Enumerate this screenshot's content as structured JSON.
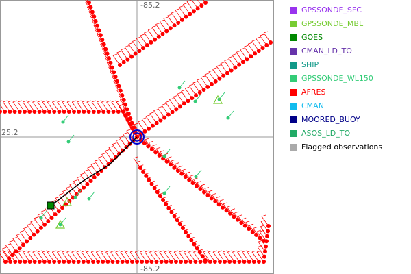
{
  "plot": {
    "labels": {
      "top": "-85.2",
      "left": "25.2",
      "bottom": "-85.2"
    }
  },
  "legend": {
    "items": [
      {
        "name": "GPSSONDE_SFC",
        "color": "#9933ee",
        "text_color": "#9933ee"
      },
      {
        "name": "GPSSONDE_MBL",
        "color": "#77cc33",
        "text_color": "#77cc33"
      },
      {
        "name": "GOES",
        "color": "#008800",
        "text_color": "#008800"
      },
      {
        "name": "CMAN_LD_TO",
        "color": "#6633aa",
        "text_color": "#6633aa"
      },
      {
        "name": "SHIP",
        "color": "#119988",
        "text_color": "#119988"
      },
      {
        "name": "GPSSONDE_WL150",
        "color": "#33cc77",
        "text_color": "#33cc77"
      },
      {
        "name": "AFRES",
        "color": "#ff0000",
        "text_color": "#ff0000"
      },
      {
        "name": "CMAN",
        "color": "#11bbee",
        "text_color": "#11bbee"
      },
      {
        "name": "MOORED_BUOY",
        "color": "#000088",
        "text_color": "#000088"
      },
      {
        "name": "ASOS_LD_TO",
        "color": "#22aa66",
        "text_color": "#22aa66"
      },
      {
        "name": "Flagged observations",
        "color": "#aaaaaa",
        "text_color": "#000000"
      }
    ]
  }
}
